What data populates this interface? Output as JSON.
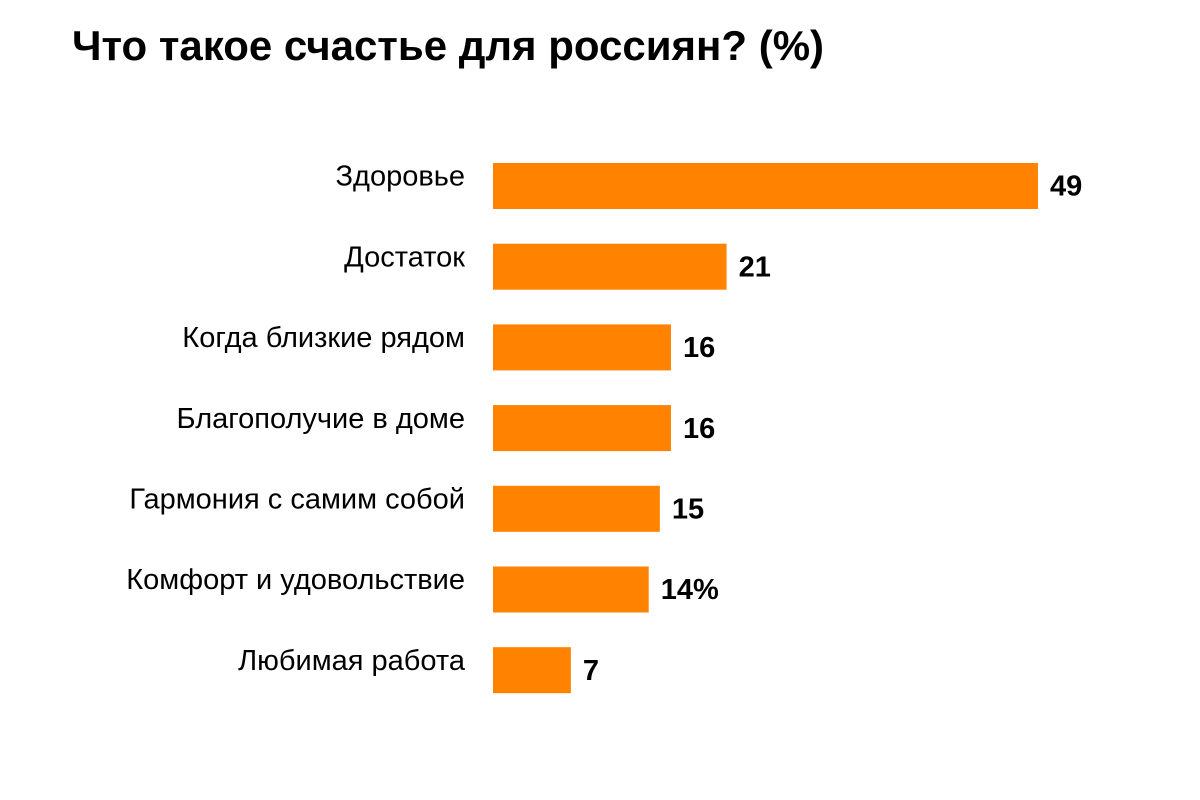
{
  "colors": {
    "bar": "#FF8200",
    "text": "#000000",
    "background": "#FFFFFF"
  },
  "chart_data": {
    "type": "bar",
    "orientation": "horizontal",
    "title": "Что такое счастье для россиян? (%)",
    "xlabel": "",
    "ylabel": "",
    "grid": false,
    "legend": "none",
    "xlim": [
      0,
      49
    ],
    "categories": [
      "Здоровье",
      "Достаток",
      "Когда близкие рядом",
      "Благополучие в доме",
      "Гармония с самим собой",
      "Комфорт и удовольствие",
      "Любимая работа"
    ],
    "values": [
      49,
      21,
      16,
      16,
      15,
      14,
      7
    ],
    "data_labels": [
      "49",
      "21",
      "16",
      "16",
      "15",
      "14%",
      "7"
    ]
  }
}
